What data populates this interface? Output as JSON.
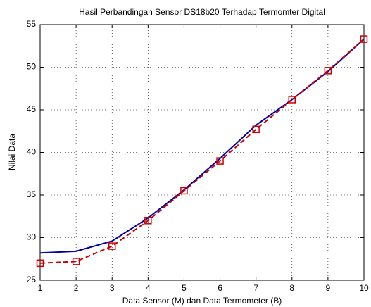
{
  "chart_data": {
    "type": "line",
    "title": "Hasil Perbandingan Sensor DS18b20 Terhadap Termomter Digital",
    "x_label": "Data Sensor (M) dan Data Termometer (B)",
    "y_label": "Nilai Data",
    "x": [
      1,
      2,
      3,
      4,
      5,
      6,
      7,
      8,
      9,
      10
    ],
    "series": [
      {
        "color": "#0000aa",
        "line_style": "solid",
        "marker": "none",
        "values": [
          28.2,
          28.4,
          29.6,
          32.3,
          35.6,
          39.3,
          43.2,
          46.2,
          49.5,
          53.3
        ]
      },
      {
        "color": "#cc0000",
        "line_style": "dashed",
        "marker": "square",
        "values": [
          27.0,
          27.2,
          29.0,
          32.0,
          35.5,
          39.0,
          42.7,
          46.2,
          49.6,
          53.3
        ]
      }
    ],
    "xlim": [
      1,
      10
    ],
    "xticks": [
      1,
      2,
      3,
      4,
      5,
      6,
      7,
      8,
      9,
      10
    ],
    "ylim": [
      25,
      55
    ],
    "yticks": [
      25,
      30,
      35,
      40,
      45,
      50,
      55
    ],
    "grid": true
  }
}
